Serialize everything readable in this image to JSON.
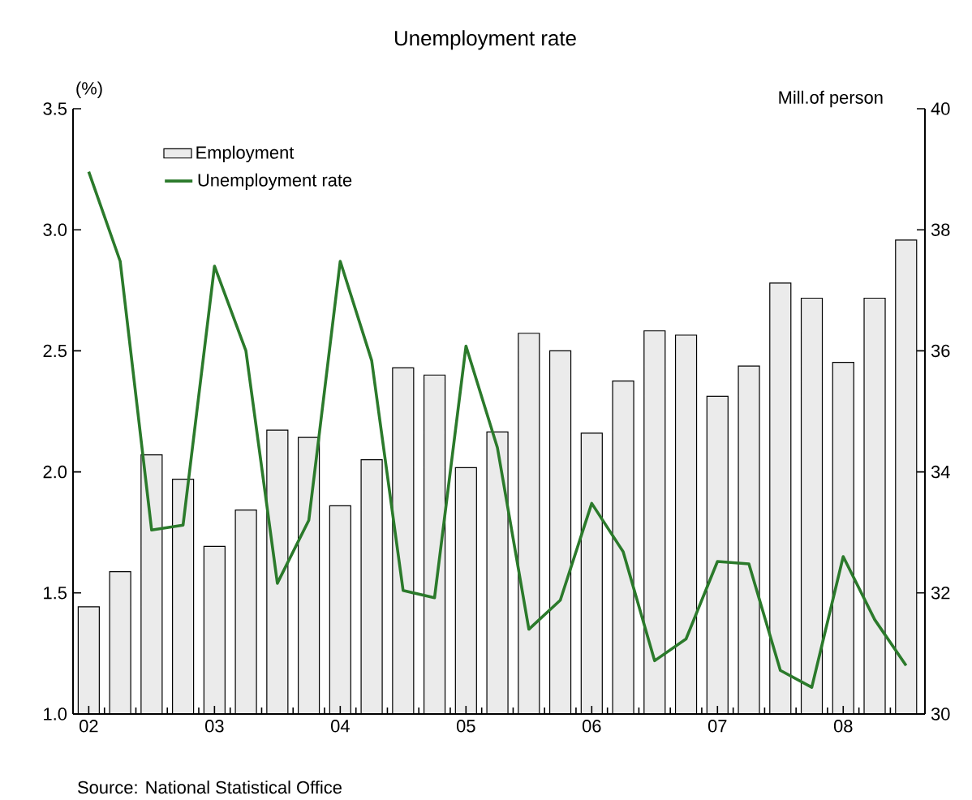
{
  "chart_data": {
    "type": "bar",
    "title": "Unemployment rate",
    "ylabel": "(%)",
    "y2label": "Mill.of person",
    "categories": [
      "02",
      null,
      null,
      null,
      "03",
      null,
      null,
      null,
      "04",
      null,
      null,
      null,
      "05",
      null,
      null,
      null,
      "06",
      null,
      null,
      null,
      "07",
      null,
      null,
      null,
      "08",
      null,
      null
    ],
    "series": [
      {
        "name": "Employment",
        "axis": "y2",
        "color": "#ebebeb",
        "values": [
          31.77,
          32.35,
          34.28,
          33.88,
          32.77,
          33.37,
          34.69,
          34.57,
          33.44,
          34.2,
          35.72,
          35.6,
          34.07,
          34.66,
          36.29,
          36.0,
          34.64,
          35.5,
          36.33,
          36.26,
          35.25,
          35.75,
          37.12,
          36.87,
          35.81,
          36.87,
          37.83
        ]
      },
      {
        "name": "Unemployment rate",
        "type": "line",
        "color": "#2b7a2b",
        "values": [
          3.24,
          2.87,
          1.76,
          1.78,
          2.85,
          2.5,
          1.54,
          1.8,
          2.87,
          2.46,
          1.51,
          1.48,
          2.52,
          2.1,
          1.35,
          1.47,
          1.87,
          1.67,
          1.22,
          1.31,
          1.63,
          1.62,
          1.18,
          1.11,
          1.65,
          1.39,
          1.2
        ]
      }
    ],
    "ylim": [
      1,
      3.5
    ],
    "yticks": [
      {
        "value": 1,
        "label": "1.0"
      },
      1.5,
      {
        "value": 2,
        "label": "2.0"
      },
      2.5,
      {
        "value": 3,
        "label": "3.0"
      },
      3.5
    ],
    "y2lim": [
      30,
      40
    ],
    "y2ticks": [
      30,
      32,
      34,
      36,
      38,
      40
    ],
    "legend": "top left",
    "annotations": [
      "Source: National Statistical Office"
    ]
  }
}
